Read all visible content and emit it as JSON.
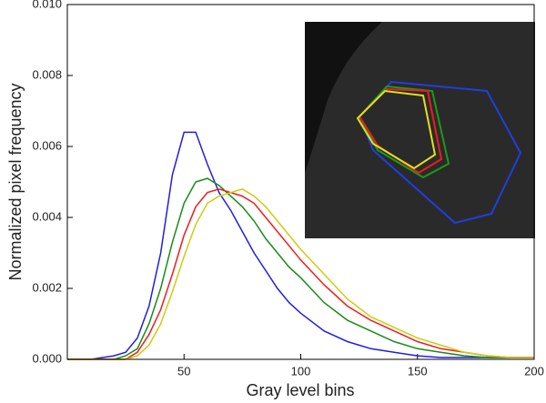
{
  "chart_data": {
    "type": "line",
    "xlabel": "Gray level bins",
    "ylabel": "Normalized pixel frequency",
    "x": [
      0,
      10,
      20,
      25,
      30,
      35,
      40,
      45,
      50,
      55,
      60,
      65,
      70,
      75,
      80,
      85,
      90,
      95,
      100,
      110,
      120,
      130,
      140,
      150,
      160,
      170,
      180,
      190,
      200
    ],
    "series": [
      {
        "color": "#1f1fe0",
        "values": [
          0,
          0,
          0.0001,
          0.0002,
          0.0006,
          0.0015,
          0.003,
          0.0052,
          0.0064,
          0.0064,
          0.0055,
          0.0047,
          0.0042,
          0.0036,
          0.003,
          0.0025,
          0.002,
          0.0016,
          0.0013,
          0.0008,
          0.0005,
          0.0003,
          0.0002,
          0.0001,
          5e-05,
          5e-05,
          5e-05,
          5e-05,
          5e-05
        ]
      },
      {
        "color": "#1a8a1a",
        "values": [
          0,
          0,
          0,
          0.0001,
          0.0003,
          0.001,
          0.002,
          0.0033,
          0.0044,
          0.005,
          0.0051,
          0.0049,
          0.0046,
          0.0043,
          0.0039,
          0.0034,
          0.003,
          0.0026,
          0.0023,
          0.0016,
          0.0011,
          0.0008,
          0.0005,
          0.0003,
          0.0002,
          0.0001,
          5e-05,
          5e-05,
          5e-05
        ]
      },
      {
        "color": "#ee1c1c",
        "values": [
          0,
          0,
          0,
          0,
          0.0002,
          0.0007,
          0.0014,
          0.0024,
          0.0035,
          0.0043,
          0.0047,
          0.0048,
          0.0047,
          0.0046,
          0.0044,
          0.004,
          0.0036,
          0.0032,
          0.0028,
          0.0021,
          0.0015,
          0.0011,
          0.0008,
          0.0005,
          0.0003,
          0.0002,
          0.0001,
          5e-05,
          5e-05
        ]
      },
      {
        "color": "#cccc10",
        "values": [
          0,
          0,
          0,
          0,
          0.0001,
          0.0004,
          0.001,
          0.0019,
          0.0029,
          0.0038,
          0.0044,
          0.0046,
          0.0047,
          0.0048,
          0.0046,
          0.0043,
          0.0039,
          0.0035,
          0.0031,
          0.0024,
          0.0017,
          0.0012,
          0.0009,
          0.0006,
          0.0004,
          0.0002,
          0.0001,
          5e-05,
          5e-05
        ]
      }
    ],
    "xlim": [
      0,
      200
    ],
    "xticks": [
      50,
      100,
      150,
      200
    ],
    "ylim": [
      0,
      0.01
    ],
    "yticks": [
      {
        "value": 0,
        "label": "0.000"
      },
      {
        "value": 0.002,
        "label": "0.002"
      },
      {
        "value": 0.004,
        "label": "0.004"
      },
      {
        "value": 0.006,
        "label": "0.006"
      },
      {
        "value": 0.008,
        "label": "0.008"
      },
      {
        "value": 0.01,
        "label": "0.010"
      }
    ],
    "grid": false
  }
}
